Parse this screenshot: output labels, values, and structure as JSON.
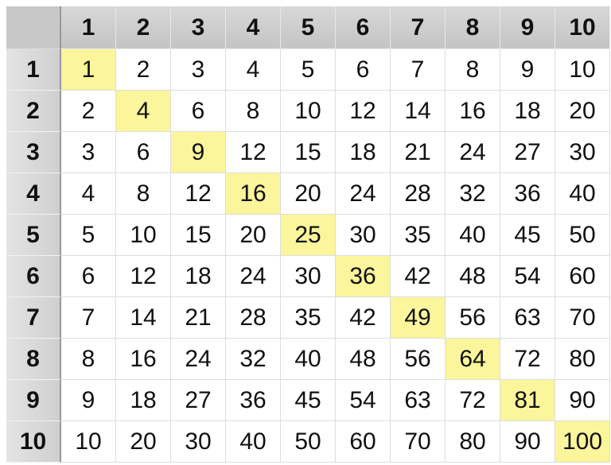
{
  "table": {
    "columns": [
      1,
      2,
      3,
      4,
      5,
      6,
      7,
      8,
      9,
      10
    ],
    "rows": [
      {
        "label": 1,
        "cells": [
          1,
          2,
          3,
          4,
          5,
          6,
          7,
          8,
          9,
          10
        ]
      },
      {
        "label": 2,
        "cells": [
          2,
          4,
          6,
          8,
          10,
          12,
          14,
          16,
          18,
          20
        ]
      },
      {
        "label": 3,
        "cells": [
          3,
          6,
          9,
          12,
          15,
          18,
          21,
          24,
          27,
          30
        ]
      },
      {
        "label": 4,
        "cells": [
          4,
          8,
          12,
          16,
          20,
          24,
          28,
          32,
          36,
          40
        ]
      },
      {
        "label": 5,
        "cells": [
          5,
          10,
          15,
          20,
          25,
          30,
          35,
          40,
          45,
          50
        ]
      },
      {
        "label": 6,
        "cells": [
          6,
          12,
          18,
          24,
          30,
          36,
          42,
          48,
          54,
          60
        ]
      },
      {
        "label": 7,
        "cells": [
          7,
          14,
          21,
          28,
          35,
          42,
          49,
          56,
          63,
          70
        ]
      },
      {
        "label": 8,
        "cells": [
          8,
          16,
          24,
          32,
          40,
          48,
          56,
          64,
          72,
          80
        ]
      },
      {
        "label": 9,
        "cells": [
          9,
          18,
          27,
          36,
          45,
          54,
          63,
          72,
          81,
          90
        ]
      },
      {
        "label": 10,
        "cells": [
          10,
          20,
          30,
          40,
          50,
          60,
          70,
          80,
          90,
          100
        ]
      }
    ]
  }
}
